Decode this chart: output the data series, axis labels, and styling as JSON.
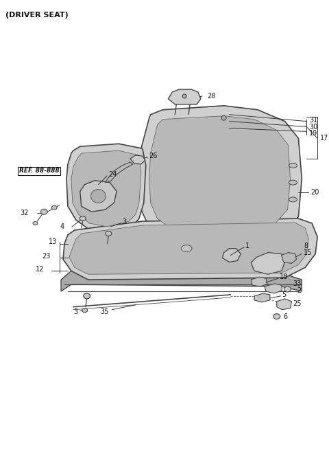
{
  "title": "(DRIVER SEAT)",
  "bg_color": "#ffffff",
  "line_color": "#000000",
  "fig_width": 4.8,
  "fig_height": 6.55,
  "dpi": 100,
  "ref_text": "REF. 88-888",
  "label_fontsize": 7.0,
  "title_fontsize": 8.0,
  "seat_fill": "#d0d0d0",
  "seat_edge": "#444444",
  "seat_inner_fill": "#b8b8b8",
  "part_edge": "#333333"
}
